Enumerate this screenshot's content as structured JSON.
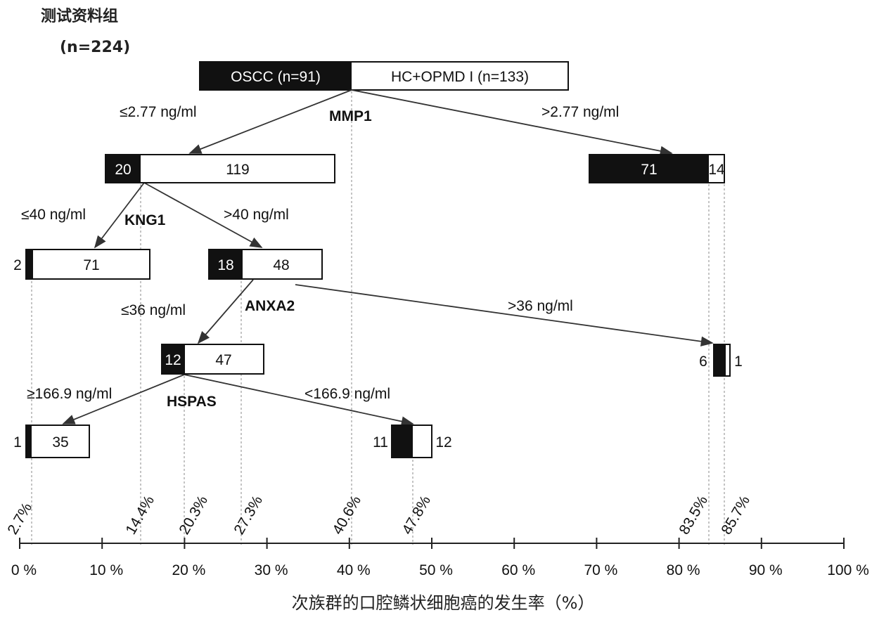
{
  "header": {
    "title": "测试资料组",
    "n": "(n=224)"
  },
  "root": {
    "left": "OSCC (n=91)",
    "right": "HC+OPMD I (n=133)"
  },
  "splits": {
    "mmp1": {
      "marker": "MMP1",
      "left": "≤2.77 ng/ml",
      "right": ">2.77 ng/ml"
    },
    "kng1": {
      "marker": "KNG1",
      "left": "≤40 ng/ml",
      "right": ">40 ng/ml"
    },
    "anxa2": {
      "marker": "ANXA2",
      "left": "≤36 ng/ml",
      "right": ">36 ng/ml"
    },
    "hspas": {
      "marker": "HSPAS",
      "left": "≥166.9 ng/ml",
      "right": "<166.9 ng/ml"
    }
  },
  "nodes": {
    "a": {
      "oscc": "20",
      "other": "119"
    },
    "b": {
      "oscc": "71",
      "other": "14"
    },
    "c": {
      "oscc": "2",
      "other": "71"
    },
    "d": {
      "oscc": "18",
      "other": "48"
    },
    "e": {
      "oscc": "12",
      "other": "47"
    },
    "f": {
      "oscc": "6",
      "other": "1"
    },
    "g": {
      "oscc": "1",
      "other": "35"
    },
    "h": {
      "oscc": "11",
      "other": "12"
    }
  },
  "rates": [
    "2.7%",
    "14.4%",
    "20.3%",
    "27.3%",
    "40.6%",
    "47.8%",
    "83.5%",
    "85.7%"
  ],
  "axis": {
    "ticks": [
      "0 %",
      "10 %",
      "20 %",
      "30 %",
      "40 %",
      "50 %",
      "60 %",
      "70 %",
      "80 %",
      "90 %",
      "100 %"
    ],
    "label": "次族群的口腔鳞状细胞癌的发生率（%）"
  }
}
